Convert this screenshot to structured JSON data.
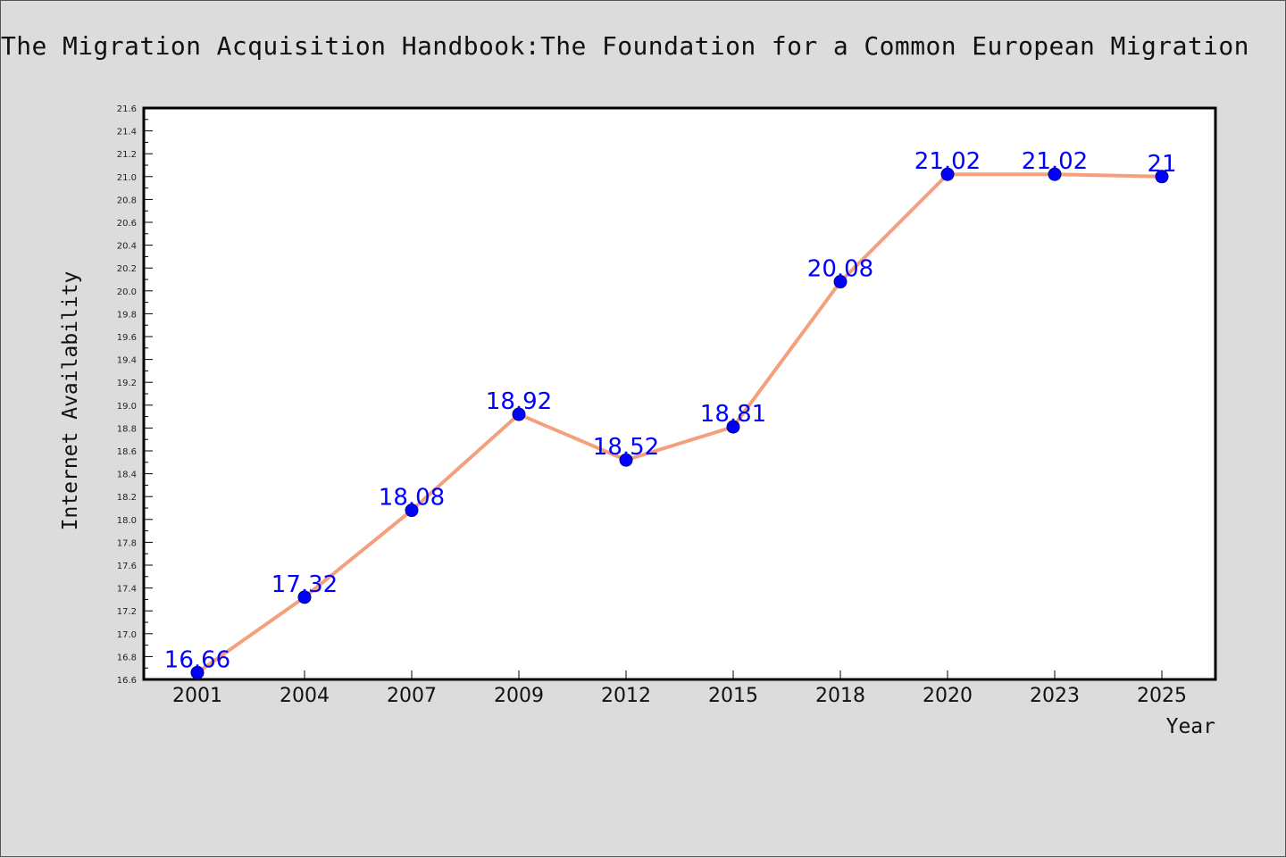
{
  "title": "The Migration Acquisition Handbook:The Foundation for a Common European Migration",
  "colors": {
    "background": "#dcdcdc",
    "plot_background": "#ffffff",
    "line": "#f4a07e",
    "marker_fill": "#0000ff",
    "marker_edge": "#00008b",
    "data_label": "#0000ff"
  },
  "chart_data": {
    "type": "line",
    "title": "The Migration Acquisition Handbook:The Foundation for a Common European Migration",
    "xlabel": "Year",
    "ylabel": "Internet Availability",
    "categories": [
      "2001",
      "2004",
      "2007",
      "2009",
      "2012",
      "2015",
      "2018",
      "2020",
      "2023",
      "2025"
    ],
    "series": [
      {
        "values": [
          16.66,
          17.32,
          18.08,
          18.92,
          18.52,
          18.81,
          20.08,
          21.02,
          21.02,
          21
        ],
        "labels": [
          "16.66",
          "17.32",
          "18.08",
          "18.92",
          "18.52",
          "18.81",
          "20.08",
          "21.02",
          "21.02",
          "21"
        ]
      }
    ],
    "ylim": [
      16.6,
      21.6
    ],
    "y_ticks": [
      "16.6",
      "16.8",
      "17.0",
      "17.2",
      "17.4",
      "17.6",
      "17.8",
      "18.0",
      "18.2",
      "18.4",
      "18.6",
      "18.8",
      "19.0",
      "19.2",
      "19.4",
      "19.6",
      "19.8",
      "20.0",
      "20.2",
      "20.4",
      "20.6",
      "20.8",
      "21.0",
      "21.2",
      "21.4",
      "21.6"
    ],
    "grid": false,
    "legend": "none"
  }
}
